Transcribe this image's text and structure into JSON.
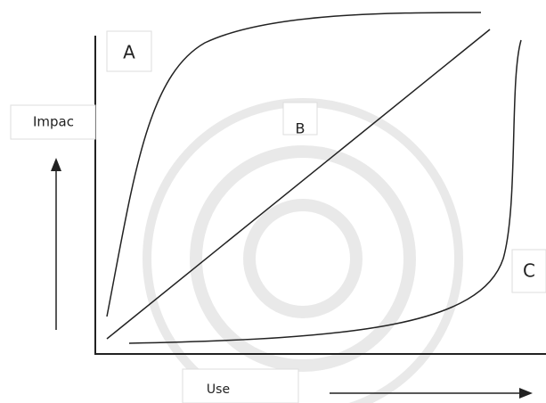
{
  "labels": {
    "a": "A",
    "b": "B",
    "c": "C",
    "y_axis": "Impac",
    "x_axis": "Use"
  }
}
